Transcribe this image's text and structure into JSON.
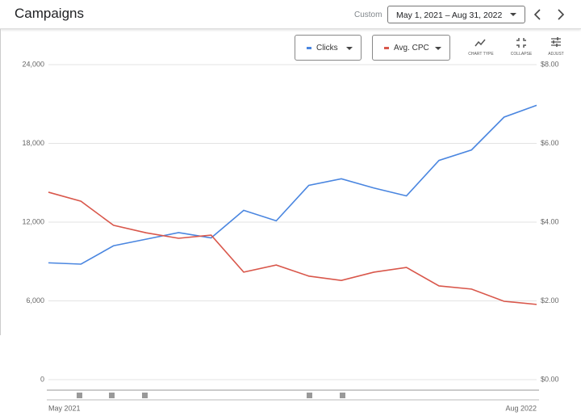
{
  "header": {
    "title": "Campaigns",
    "date_label": "Custom",
    "date_range": "May 1, 2021 – Aug 31, 2022"
  },
  "toolbar": {
    "chart_type": "CHART TYPE",
    "collapse": "COLLAPSE",
    "adjust": "ADJUST"
  },
  "chart_data": {
    "type": "line",
    "categories": [
      "May 2021",
      null,
      null,
      null,
      null,
      null,
      null,
      null,
      null,
      null,
      null,
      null,
      null,
      null,
      null,
      "Aug 2022"
    ],
    "series": [
      {
        "name": "Clicks",
        "color": "#4a86e0",
        "values": [
          8900,
          8800,
          10200,
          10700,
          11200,
          10800,
          12900,
          12100,
          14800,
          15300,
          14600,
          14000,
          16700,
          17500,
          20000,
          20900
        ]
      },
      {
        "name": "Avg. CPC",
        "color": "#d9574b",
        "axis": "y2",
        "values": [
          4.76,
          4.53,
          3.92,
          3.73,
          3.59,
          3.67,
          2.73,
          2.91,
          2.63,
          2.52,
          2.73,
          2.85,
          2.38,
          2.3,
          1.99,
          1.91
        ]
      }
    ],
    "ylim": [
      0,
      24000
    ],
    "yticks": [
      0,
      {
        "value": 6000,
        "label": "6,000"
      },
      {
        "value": 12000,
        "label": "12,000"
      },
      {
        "value": 18000,
        "label": "18,000"
      },
      {
        "value": 24000,
        "label": "24,000"
      }
    ],
    "y2lim": [
      0,
      8
    ],
    "y2ticks": [
      {
        "value": 0,
        "label": "$0.00"
      },
      {
        "value": 2,
        "label": "$2.00"
      },
      {
        "value": 4,
        "label": "$4.00"
      },
      {
        "value": 6,
        "label": "$6.00"
      },
      {
        "value": 8,
        "label": "$8.00"
      }
    ],
    "grid": true
  }
}
